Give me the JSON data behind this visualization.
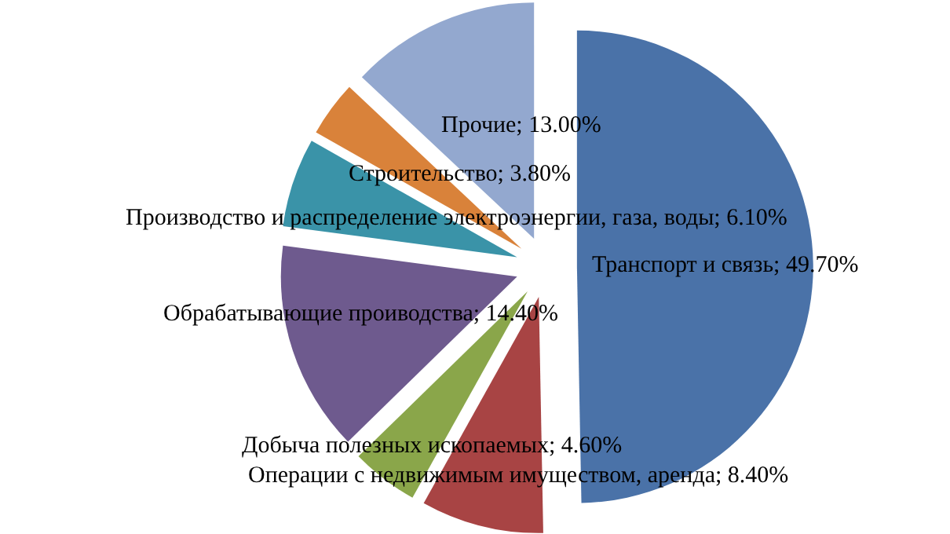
{
  "chart_data": {
    "type": "pie",
    "categories": [
      "Транспорт и связь",
      "Операции с недвижимым имуществом, аренда",
      "Добыча полезных ископаемых",
      "Обрабатывающие проиводства",
      "Производство и распределение электроэнергии, газа, воды",
      "Строительство",
      "Прочие"
    ],
    "values": [
      49.7,
      8.4,
      4.6,
      14.4,
      6.1,
      3.8,
      13.0
    ],
    "value_labels": [
      "49.70%",
      "8.40%",
      "4.60%",
      "14.40%",
      "6.10%",
      "3.80%",
      "13.00%"
    ],
    "colors": [
      "#4a72a8",
      "#a84444",
      "#8aa64a",
      "#6e5a8e",
      "#3a93a8",
      "#d9823a",
      "#93a8cf"
    ],
    "legend": false
  }
}
